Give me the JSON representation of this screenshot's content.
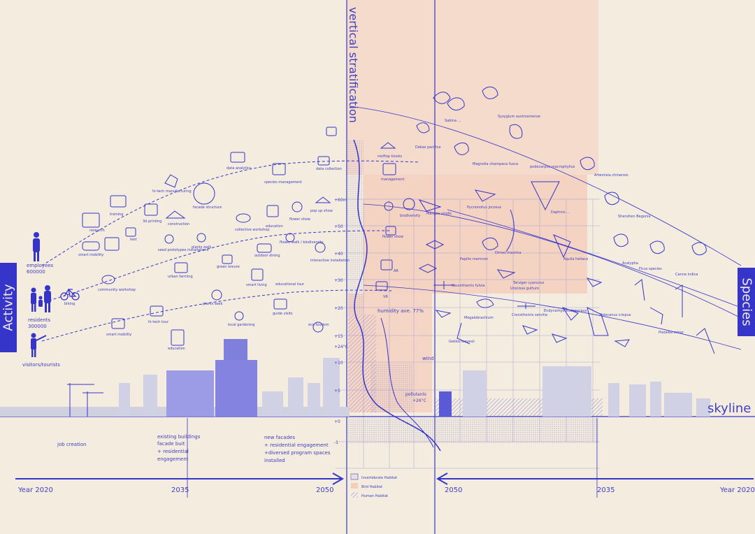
{
  "titles": {
    "vertical": "vertical stratification",
    "skyline": "skyline",
    "activity": "Activity",
    "species": "Species"
  },
  "timeline": {
    "left": [
      "Year 2020",
      "2035",
      "2050"
    ],
    "right": [
      "2050",
      "2035",
      "Year 2020"
    ]
  },
  "people": {
    "employees": "employees",
    "employees_count": "600000",
    "residents": "residents",
    "residents_count": "300000",
    "visitors": "visitors/tourists"
  },
  "activities": [
    "data analytics",
    "data collection",
    "species management",
    "facade structure",
    "hi-tech manufacturing",
    "3d printing",
    "construction",
    "training",
    "research",
    "smart mobility",
    "test",
    "seed prototypes installations",
    "plants walk",
    "urban farming",
    "community workshop",
    "biking",
    "hi-tech tour",
    "education",
    "smart mobility",
    "plants walk",
    "local gardening",
    "smart living",
    "educational tour",
    "guide visits",
    "eco tourism",
    "green leisure",
    "outdoor dining",
    "interactive installation",
    "education",
    "flower show",
    "pop up show",
    "collective workshop",
    "flower walk / biodiversity",
    "rooftop kiosks",
    "management",
    "biodiversity",
    "flower show",
    "AR",
    "VR"
  ],
  "timeline_notes": {
    "col1": [
      "job creation"
    ],
    "col2": [
      "existing buildings",
      "facade buit",
      "+ residential",
      "engagement"
    ],
    "col3": [
      "new facades",
      "+ residential engagement",
      "+diversed program spaces",
      "installed"
    ]
  },
  "heights": [
    "+60m",
    "+50",
    "+40",
    "+30",
    "+20",
    "+15",
    "+10",
    "+5",
    "+0",
    "-1"
  ],
  "climate": {
    "temp_high": "+24°C",
    "humidity": "humidity ave. 77%",
    "wind": "wind",
    "pollutants": "pollutants",
    "temp_low": "+26°C"
  },
  "legend": [
    "Invertebrate Habitat",
    "Bird Habitat",
    "Human Habitat"
  ],
  "species": [
    "Sabina ...",
    "Syzygium austrosinense",
    "Dekas pacifica",
    "Magnolia champaca fusca",
    "podocarpus macrophyllus",
    "Artemisia chinensis",
    "Pycnonotus jocosus",
    "Mangos viridis",
    "Dimes maxima",
    "Daphnis ...",
    "Aquila heliaca",
    "Shenzhen Begonia",
    "Acalypha",
    "Ficus species",
    "Canna indica",
    "Papilio memnon",
    "Neurothemis fulvia",
    "Tarsiger cyanurus",
    "Urocissa gutturo",
    "Megalobrachium",
    "Crocothemis servilia",
    "Endynamys scolopaceus",
    "Pelecanus crispus",
    "Platalea minor",
    "Gekko reevesii"
  ],
  "colors": {
    "background": "#f3ecdf",
    "accent": "#3535c9",
    "bird_habitat": "#f5cdbb",
    "building": "#c9cae0",
    "building_strong": "#5a5ad6"
  }
}
